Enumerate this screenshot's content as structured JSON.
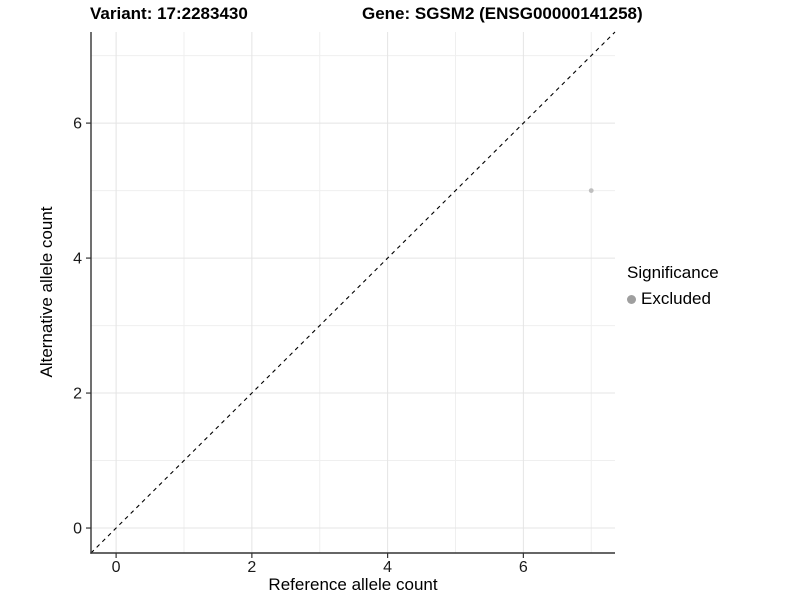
{
  "header": {
    "title_left": "Variant: 17:2283430",
    "title_right": "Gene: SGSM2 (ENSG00000141258)"
  },
  "legend": {
    "title": "Significance",
    "items": [
      {
        "label": "Excluded",
        "color": "#9f9f9f"
      }
    ]
  },
  "chart_data": {
    "type": "scatter",
    "xlabel": "Reference allele count",
    "ylabel": "Alternative allele count",
    "xlim": [
      -0.37,
      7.35
    ],
    "ylim": [
      -0.37,
      7.35
    ],
    "x_major_ticks": [
      0,
      2,
      4,
      6
    ],
    "y_major_ticks": [
      0,
      2,
      4,
      6
    ],
    "x_minor_ticks": [
      1,
      3,
      5,
      7
    ],
    "y_minor_ticks": [
      1,
      3,
      5,
      7
    ],
    "grid": true,
    "legend_position": "right",
    "points": [
      {
        "x": 7,
        "y": 5,
        "significance": "Excluded"
      }
    ],
    "reference_line": {
      "slope": 1,
      "intercept": 0,
      "style": "dashed",
      "color": "#000000"
    },
    "colors": {
      "point": "#bfbfbf",
      "grid_major": "#e4e4e4",
      "grid_minor": "#efefef",
      "axis_line": "#333333",
      "tick_mark": "#333333",
      "tick_text": "#1a1a1a",
      "background": "#ffffff"
    }
  }
}
